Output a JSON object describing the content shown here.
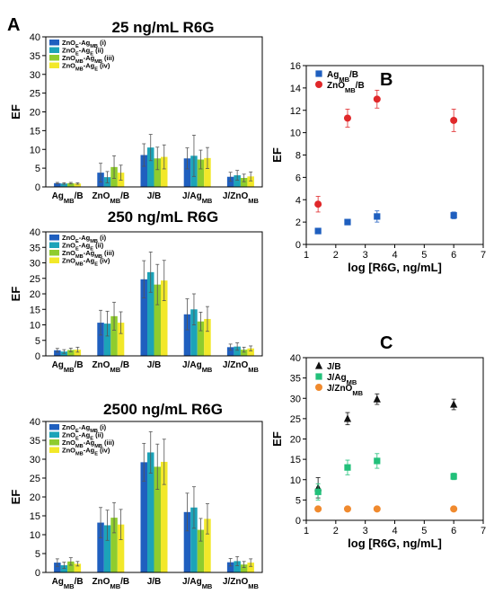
{
  "panel_labels": {
    "A": "A",
    "B": "B",
    "C": "C"
  },
  "chart_data": [
    {
      "id": "a1",
      "type": "bar",
      "title": "25 ng/mL R6G",
      "ylabel": "EF",
      "ylim": [
        0,
        40
      ],
      "yticks": [
        "0",
        "5",
        "10",
        "15",
        "20",
        "25",
        "30",
        "35",
        "40"
      ],
      "categories": [
        "Ag_MB/B",
        "ZnO_MB/B",
        "J/B",
        "J/Ag_MB",
        "J/ZnO_MB"
      ],
      "category_labels": [
        {
          "pre": "Ag",
          "sub": "MB",
          "post": "/B"
        },
        {
          "pre": "ZnO",
          "sub": "MB",
          "post": "/B"
        },
        {
          "pre": "J/B",
          "sub": "",
          "post": ""
        },
        {
          "pre": "J/Ag",
          "sub": "MB",
          "post": ""
        },
        {
          "pre": "J/ZnO",
          "sub": "MB",
          "post": ""
        }
      ],
      "series": [
        {
          "name": "ZnO_E-Ag_MB (i)",
          "color": "#1f5fbf",
          "values": [
            1.0,
            3.8,
            8.5,
            7.6,
            2.7
          ],
          "errors": [
            0.2,
            2.5,
            3.0,
            2.8,
            1.2
          ]
        },
        {
          "name": "ZnO_E-Ag_E (ii)",
          "color": "#1ca3b8",
          "values": [
            0.9,
            2.6,
            10.5,
            8.3,
            3.1
          ],
          "errors": [
            0.2,
            1.5,
            3.5,
            5.5,
            1.3
          ]
        },
        {
          "name": "ZnO_MB-Ag_MB (iii)",
          "color": "#8fcc2e",
          "values": [
            1.0,
            5.3,
            7.6,
            7.3,
            2.4
          ],
          "errors": [
            0.2,
            3.0,
            3.0,
            2.5,
            1.0
          ]
        },
        {
          "name": "ZnO_MB-Ag_E (iv)",
          "color": "#f2e829",
          "values": [
            0.9,
            3.8,
            8.0,
            7.7,
            2.8
          ],
          "errors": [
            0.2,
            2.0,
            3.2,
            2.8,
            1.2
          ]
        }
      ]
    },
    {
      "id": "a2",
      "type": "bar",
      "title": "250 ng/mL R6G",
      "ylabel": "EF",
      "ylim": [
        0,
        40
      ],
      "yticks": [
        "0",
        "5",
        "10",
        "15",
        "20",
        "25",
        "30",
        "35",
        "40"
      ],
      "categories": [
        "Ag_MB/B",
        "ZnO_MB/B",
        "J/B",
        "J/Ag_MB",
        "J/ZnO_MB"
      ],
      "category_labels": [
        {
          "pre": "Ag",
          "sub": "MB",
          "post": "/B"
        },
        {
          "pre": "ZnO",
          "sub": "MB",
          "post": "/B"
        },
        {
          "pre": "J/B",
          "sub": "",
          "post": ""
        },
        {
          "pre": "J/Ag",
          "sub": "MB",
          "post": ""
        },
        {
          "pre": "J/ZnO",
          "sub": "MB",
          "post": ""
        }
      ],
      "series": [
        {
          "name": "ZnO_E-Ag_MB (i)",
          "color": "#1f5fbf",
          "values": [
            1.8,
            10.7,
            24.7,
            13.4,
            2.8
          ],
          "errors": [
            0.6,
            4.0,
            6.0,
            5.0,
            1.0
          ]
        },
        {
          "name": "ZnO_E-Ag_E (ii)",
          "color": "#1ca3b8",
          "values": [
            1.4,
            10.4,
            27.0,
            15.0,
            3.0
          ],
          "errors": [
            0.6,
            4.0,
            6.5,
            5.0,
            1.2
          ]
        },
        {
          "name": "ZnO_MB-Ag_MB (iii)",
          "color": "#8fcc2e",
          "values": [
            1.9,
            12.8,
            23.0,
            11.1,
            2.0
          ],
          "errors": [
            0.6,
            4.5,
            6.5,
            3.0,
            0.8
          ]
        },
        {
          "name": "ZnO_MB-Ag_E (iv)",
          "color": "#f2e829",
          "values": [
            2.0,
            10.7,
            24.3,
            11.9,
            2.4
          ],
          "errors": [
            0.8,
            3.5,
            6.5,
            4.0,
            0.8
          ]
        }
      ]
    },
    {
      "id": "a3",
      "type": "bar",
      "title": "2500 ng/mL R6G",
      "ylabel": "EF",
      "ylim": [
        0,
        40
      ],
      "yticks": [
        "0",
        "5",
        "10",
        "15",
        "20",
        "25",
        "30",
        "35",
        "40"
      ],
      "categories": [
        "Ag_MB/B",
        "ZnO_MB/B",
        "J/B",
        "J/Ag_MB",
        "J/ZnO_MB"
      ],
      "category_labels": [
        {
          "pre": "Ag",
          "sub": "MB",
          "post": "/B"
        },
        {
          "pre": "ZnO",
          "sub": "MB",
          "post": "/B"
        },
        {
          "pre": "J/B",
          "sub": "",
          "post": ""
        },
        {
          "pre": "J/Ag",
          "sub": "MB",
          "post": ""
        },
        {
          "pre": "J/ZnO",
          "sub": "MB",
          "post": ""
        }
      ],
      "series": [
        {
          "name": "ZnO_E-Ag_MB (i)",
          "color": "#1f5fbf",
          "values": [
            2.6,
            13.2,
            29.2,
            16.0,
            2.7
          ],
          "errors": [
            1.0,
            4.0,
            5.0,
            5.0,
            1.0
          ]
        },
        {
          "name": "ZnO_E-Ag_E (ii)",
          "color": "#1ca3b8",
          "values": [
            1.9,
            12.5,
            31.8,
            17.2,
            3.0
          ],
          "errors": [
            0.8,
            4.0,
            5.5,
            5.5,
            1.2
          ]
        },
        {
          "name": "ZnO_MB-Ag_MB (iii)",
          "color": "#8fcc2e",
          "values": [
            2.9,
            14.5,
            28.0,
            11.3,
            2.1
          ],
          "errors": [
            1.0,
            4.0,
            6.0,
            3.0,
            0.8
          ]
        },
        {
          "name": "ZnO_MB-Ag_E (iv)",
          "color": "#f2e829",
          "values": [
            2.3,
            12.7,
            29.3,
            14.2,
            2.6
          ],
          "errors": [
            0.6,
            4.0,
            6.0,
            4.0,
            1.0
          ]
        }
      ]
    },
    {
      "id": "b",
      "type": "scatter",
      "xlabel": "log [R6G, ng/mL]",
      "ylabel": "EF",
      "xlim": [
        1,
        7
      ],
      "ylim": [
        0,
        16
      ],
      "xticks": [
        "1",
        "2",
        "3",
        "4",
        "5",
        "6",
        "7"
      ],
      "yticks": [
        "0",
        "2",
        "4",
        "6",
        "8",
        "10",
        "12",
        "14",
        "16"
      ],
      "series": [
        {
          "name": "Ag_MB/B",
          "label_pre": "Ag",
          "label_sub": "MB",
          "label_post": "/B",
          "color": "#1f5fbf",
          "marker": "square",
          "x": [
            1.4,
            2.4,
            3.4,
            6.0
          ],
          "y": [
            1.2,
            2.0,
            2.5,
            2.6
          ],
          "errors": [
            0.15,
            0.15,
            0.5,
            0.3
          ]
        },
        {
          "name": "ZnO_MB/B",
          "label_pre": "ZnO",
          "label_sub": "MB",
          "label_post": "/B",
          "color": "#e0282a",
          "marker": "circle",
          "x": [
            1.4,
            2.4,
            3.4,
            6.0
          ],
          "y": [
            3.6,
            11.3,
            13.0,
            11.1
          ],
          "errors": [
            0.7,
            0.8,
            0.8,
            1.0
          ]
        }
      ]
    },
    {
      "id": "c",
      "type": "scatter",
      "xlabel": "log [R6G, ng/mL]",
      "ylabel": "EF",
      "xlim": [
        1,
        7
      ],
      "ylim": [
        0,
        40
      ],
      "xticks": [
        "1",
        "2",
        "3",
        "4",
        "5",
        "6",
        "7"
      ],
      "yticks": [
        "0",
        "5",
        "10",
        "15",
        "20",
        "25",
        "30",
        "35",
        "40"
      ],
      "series": [
        {
          "name": "J/B",
          "label_pre": "J/B",
          "label_sub": "",
          "label_post": "",
          "color": "#111111",
          "marker": "triangle",
          "x": [
            1.4,
            2.4,
            3.4,
            6.0
          ],
          "y": [
            8.0,
            25.0,
            29.8,
            28.5
          ],
          "errors": [
            2.5,
            1.5,
            1.3,
            1.3
          ]
        },
        {
          "name": "J/Ag_MB",
          "label_pre": "J/Ag",
          "label_sub": "MB",
          "label_post": "",
          "color": "#22c07a",
          "marker": "square",
          "x": [
            1.4,
            2.4,
            3.4,
            6.0
          ],
          "y": [
            7.0,
            13.0,
            14.6,
            10.8
          ],
          "errors": [
            2.0,
            1.8,
            1.8,
            0.8
          ]
        },
        {
          "name": "J/ZnO_MB",
          "label_pre": "J/ZnO",
          "label_sub": "MB",
          "label_post": "",
          "color": "#f08a2e",
          "marker": "circle",
          "x": [
            1.4,
            2.4,
            3.4,
            6.0
          ],
          "y": [
            2.8,
            2.8,
            2.8,
            2.8
          ],
          "errors": [
            0.1,
            0.1,
            0.1,
            0.1
          ]
        }
      ]
    }
  ]
}
